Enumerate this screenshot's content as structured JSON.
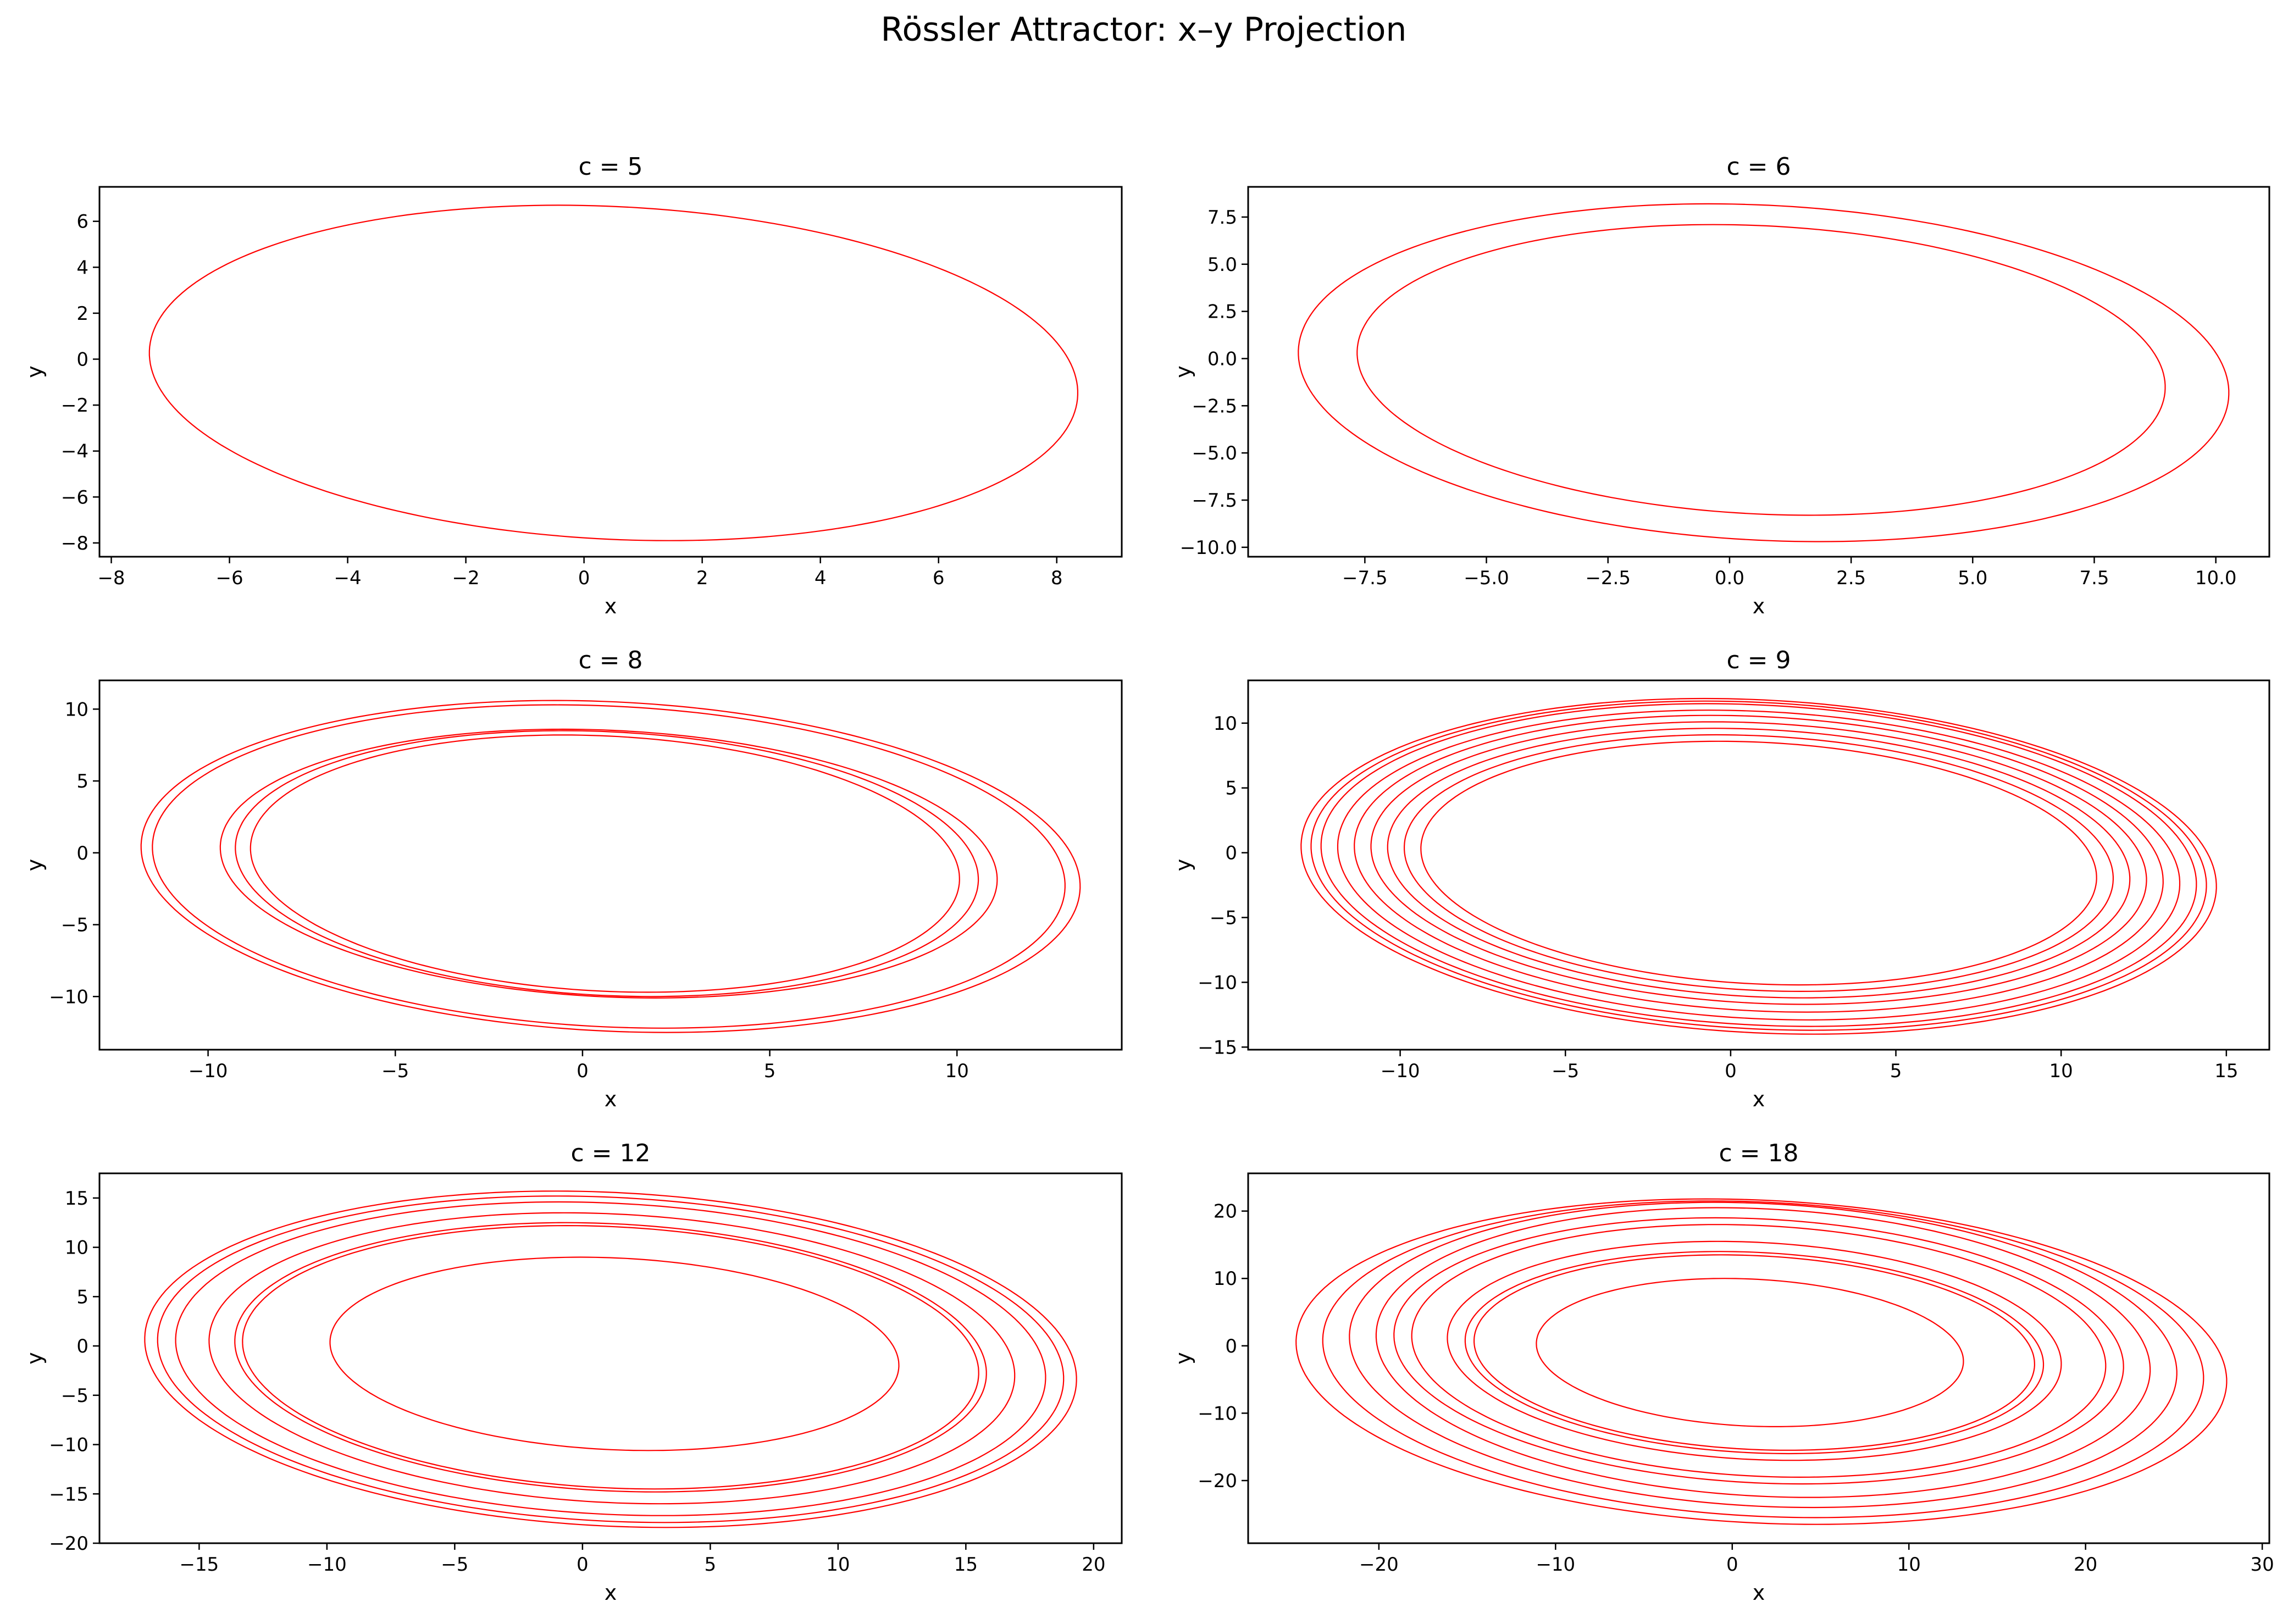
{
  "title": "Rössler Attractor: x–y Projection",
  "line_color": "#ff0000",
  "chart_data": [
    {
      "type": "line",
      "title": "c = 5",
      "xlabel": "x",
      "ylabel": "y",
      "xlim": [
        -8.2,
        9.1
      ],
      "ylim": [
        -8.6,
        7.5
      ],
      "xticks": [
        -8,
        -6,
        -4,
        -2,
        0,
        2,
        4,
        6,
        8
      ],
      "xtick_labels": [
        "−8",
        "−6",
        "−4",
        "−2",
        "0",
        "2",
        "4",
        "6",
        "8"
      ],
      "yticks": [
        -8,
        -6,
        -4,
        -2,
        0,
        2,
        4,
        6
      ],
      "ytick_labels": [
        "−8",
        "−6",
        "−4",
        "−2",
        "0",
        "2",
        "4",
        "6"
      ],
      "series": [
        {
          "loops": [
            {
              "x_min": -7.3,
              "x_max": 8.3,
              "y_max": 6.7,
              "y_min": -7.9
            }
          ]
        }
      ]
    },
    {
      "type": "line",
      "title": "c = 6",
      "xlabel": "x",
      "ylabel": "y",
      "xlim": [
        -9.9,
        11.1
      ],
      "ylim": [
        -10.5,
        9.1
      ],
      "xticks": [
        -7.5,
        -5.0,
        -2.5,
        0.0,
        2.5,
        5.0,
        7.5,
        10.0
      ],
      "xtick_labels": [
        "−7.5",
        "−5.0",
        "−2.5",
        "0.0",
        "2.5",
        "5.0",
        "7.5",
        "10.0"
      ],
      "yticks": [
        -10.0,
        -7.5,
        -5.0,
        -2.5,
        0.0,
        2.5,
        5.0,
        7.5
      ],
      "ytick_labels": [
        "−10.0",
        "−7.5",
        "−5.0",
        "−2.5",
        "0.0",
        "2.5",
        "5.0",
        "7.5"
      ],
      "series": [
        {
          "loops": [
            {
              "x_min": -7.6,
              "x_max": 8.9,
              "y_max": 7.1,
              "y_min": -8.3
            },
            {
              "x_min": -8.8,
              "x_max": 10.2,
              "y_max": 8.2,
              "y_min": -9.7
            }
          ]
        }
      ]
    },
    {
      "type": "line",
      "title": "c = 8",
      "xlabel": "x",
      "ylabel": "y",
      "xlim": [
        -12.9,
        14.4
      ],
      "ylim": [
        -13.7,
        12.0
      ],
      "xticks": [
        -10,
        -5,
        0,
        5,
        10
      ],
      "xtick_labels": [
        "−10",
        "−5",
        "0",
        "5",
        "10"
      ],
      "yticks": [
        -10,
        -5,
        0,
        5,
        10
      ],
      "ytick_labels": [
        "−10",
        "−5",
        "0",
        "5",
        "10"
      ],
      "series": [
        {
          "loops": [
            {
              "x_min": -8.8,
              "x_max": 10.0,
              "y_max": 8.2,
              "y_min": -9.7
            },
            {
              "x_min": -9.2,
              "x_max": 10.5,
              "y_max": 8.5,
              "y_min": -10.0
            },
            {
              "x_min": -9.6,
              "x_max": 11.0,
              "y_max": 8.6,
              "y_min": -10.1
            },
            {
              "x_min": -11.4,
              "x_max": 12.8,
              "y_max": 10.3,
              "y_min": -12.2
            },
            {
              "x_min": -11.7,
              "x_max": 13.2,
              "y_max": 10.6,
              "y_min": -12.5
            }
          ]
        }
      ]
    },
    {
      "type": "line",
      "title": "c = 9",
      "xlabel": "x",
      "ylabel": "y",
      "xlim": [
        -14.6,
        16.3
      ],
      "ylim": [
        -15.2,
        13.3
      ],
      "xticks": [
        -10,
        -5,
        0,
        5,
        10,
        15
      ],
      "xtick_labels": [
        "−10",
        "−5",
        "0",
        "5",
        "10",
        "15"
      ],
      "yticks": [
        -15,
        -10,
        -5,
        0,
        5,
        10
      ],
      "ytick_labels": [
        "−15",
        "−10",
        "−5",
        "0",
        "5",
        "10"
      ],
      "series": [
        {
          "loops": [
            {
              "x_min": -9.3,
              "x_max": 11.0,
              "y_max": 8.6,
              "y_min": -10.2
            },
            {
              "x_min": -9.8,
              "x_max": 11.5,
              "y_max": 9.1,
              "y_min": -10.7
            },
            {
              "x_min": -10.3,
              "x_max": 12.0,
              "y_max": 9.6,
              "y_min": -11.2
            },
            {
              "x_min": -10.8,
              "x_max": 12.5,
              "y_max": 10.1,
              "y_min": -11.7
            },
            {
              "x_min": -11.3,
              "x_max": 13.0,
              "y_max": 10.6,
              "y_min": -12.3
            },
            {
              "x_min": -11.8,
              "x_max": 13.5,
              "y_max": 11.0,
              "y_min": -12.9
            },
            {
              "x_min": -12.3,
              "x_max": 14.0,
              "y_max": 11.5,
              "y_min": -13.4
            },
            {
              "x_min": -12.6,
              "x_max": 14.3,
              "y_max": 11.7,
              "y_min": -13.7
            },
            {
              "x_min": -12.9,
              "x_max": 14.6,
              "y_max": 11.9,
              "y_min": -14.0
            }
          ]
        }
      ]
    },
    {
      "type": "line",
      "title": "c = 12",
      "xlabel": "x",
      "ylabel": "y",
      "xlim": [
        -18.9,
        21.1
      ],
      "ylim": [
        -20.0,
        17.5
      ],
      "xticks": [
        -15,
        -10,
        -5,
        0,
        5,
        10,
        15,
        20
      ],
      "xtick_labels": [
        "−15",
        "−10",
        "−5",
        "0",
        "5",
        "10",
        "15",
        "20"
      ],
      "yticks": [
        -20,
        -15,
        -10,
        -5,
        0,
        5,
        10,
        15
      ],
      "ytick_labels": [
        "−20",
        "−15",
        "−10",
        "−5",
        "0",
        "5",
        "10",
        "15"
      ],
      "series": [
        {
          "loops": [
            {
              "x_min": -9.8,
              "x_max": 12.3,
              "y_max": 9.0,
              "y_min": -10.6
            },
            {
              "x_min": -13.2,
              "x_max": 15.4,
              "y_max": 12.2,
              "y_min": -14.5
            },
            {
              "x_min": -13.5,
              "x_max": 15.7,
              "y_max": 12.5,
              "y_min": -14.8
            },
            {
              "x_min": -14.5,
              "x_max": 16.8,
              "y_max": 13.5,
              "y_min": -16.0
            },
            {
              "x_min": -15.8,
              "x_max": 18.0,
              "y_max": 14.6,
              "y_min": -17.2
            },
            {
              "x_min": -16.5,
              "x_max": 18.7,
              "y_max": 15.2,
              "y_min": -17.9
            },
            {
              "x_min": -17.0,
              "x_max": 19.2,
              "y_max": 15.7,
              "y_min": -18.4
            }
          ]
        }
      ]
    },
    {
      "type": "line",
      "title": "c = 18",
      "xlabel": "x",
      "ylabel": "y",
      "xlim": [
        -27.4,
        30.4
      ],
      "ylim": [
        -29.3,
        25.6
      ],
      "xticks": [
        -20,
        -10,
        0,
        10,
        20,
        30
      ],
      "xtick_labels": [
        "−20",
        "−10",
        "0",
        "10",
        "20",
        "30"
      ],
      "yticks": [
        -20,
        -10,
        0,
        10,
        20
      ],
      "ytick_labels": [
        "−20",
        "−10",
        "0",
        "10",
        "20"
      ],
      "series": [
        {
          "loops": [
            {
              "x_min": -11.0,
              "x_max": 13.0,
              "y_max": 10.0,
              "y_min": -12.0
            },
            {
              "x_min": -14.5,
              "x_max": 17.0,
              "y_max": 13.5,
              "y_min": -15.5
            },
            {
              "x_min": -15.0,
              "x_max": 17.5,
              "y_max": 14.0,
              "y_min": -16.0
            },
            {
              "x_min": -16.0,
              "x_max": 18.5,
              "y_max": 15.5,
              "y_min": -17.0
            },
            {
              "x_min": -18.0,
              "x_max": 21.0,
              "y_max": 18.0,
              "y_min": -19.5
            },
            {
              "x_min": -19.0,
              "x_max": 22.0,
              "y_max": 19.0,
              "y_min": -20.5
            },
            {
              "x_min": -20.0,
              "x_max": 23.5,
              "y_max": 20.5,
              "y_min": -22.5
            },
            {
              "x_min": -21.5,
              "x_max": 25.0,
              "y_max": 21.3,
              "y_min": -24.0
            },
            {
              "x_min": -23.0,
              "x_max": 26.5,
              "y_max": 21.5,
              "y_min": -25.5
            },
            {
              "x_min": -24.5,
              "x_max": 27.8,
              "y_max": 21.8,
              "y_min": -26.5
            }
          ]
        }
      ]
    }
  ]
}
